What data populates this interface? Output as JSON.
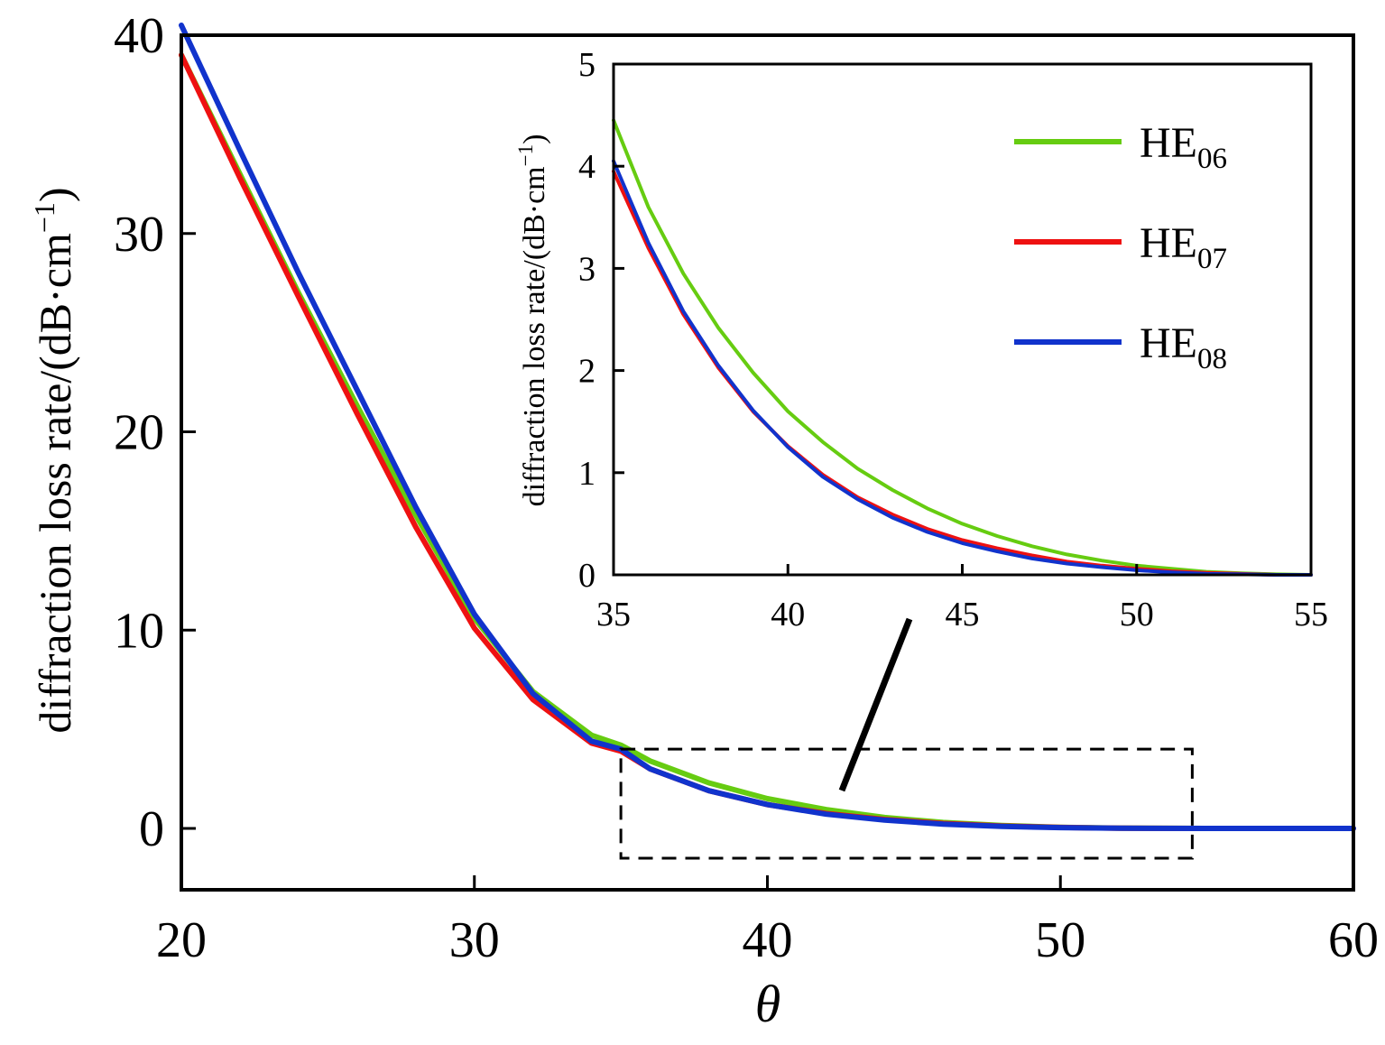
{
  "chart_data": [
    {
      "type": "line",
      "xlabel": "θ",
      "ylabel": "diffraction loss rate/(dB·cm",
      "ylabel_sup": "−1",
      "ylabel_close": ")",
      "xlim": [
        20,
        60
      ],
      "ylim": [
        -3,
        40
      ],
      "xticks": [
        "20",
        "30",
        "40",
        "50",
        "60"
      ],
      "yticks": [
        "0",
        "10",
        "20",
        "30",
        "40"
      ],
      "grid": false,
      "series": [
        {
          "name": "HE06",
          "color": "#66cc11",
          "x": [
            20,
            22,
            24,
            26,
            28,
            30,
            32,
            34,
            35,
            36,
            38,
            40,
            42,
            44,
            46,
            48,
            50,
            52,
            55,
            60
          ],
          "y": [
            39.0,
            33.0,
            27.0,
            21.3,
            15.8,
            10.6,
            6.9,
            4.7,
            4.2,
            3.4,
            2.3,
            1.5,
            0.95,
            0.55,
            0.3,
            0.15,
            0.06,
            0.02,
            0.0,
            0.0
          ]
        },
        {
          "name": "HE07",
          "color": "#ee1111",
          "x": [
            20,
            22,
            24,
            26,
            28,
            30,
            32,
            34,
            35,
            36,
            38,
            40,
            42,
            44,
            46,
            48,
            50,
            52,
            55,
            60
          ],
          "y": [
            39.0,
            32.8,
            26.8,
            20.9,
            15.2,
            10.1,
            6.5,
            4.3,
            3.9,
            3.0,
            1.9,
            1.2,
            0.75,
            0.45,
            0.25,
            0.12,
            0.05,
            0.01,
            0.0,
            0.0
          ]
        },
        {
          "name": "HE08",
          "color": "#1133cc",
          "x": [
            20,
            22,
            24,
            26,
            28,
            30,
            32,
            34,
            35,
            36,
            38,
            40,
            42,
            44,
            46,
            48,
            50,
            52,
            55,
            60
          ],
          "y": [
            40.5,
            34.2,
            28.0,
            22.1,
            16.2,
            10.8,
            6.8,
            4.4,
            4.0,
            3.0,
            1.9,
            1.2,
            0.72,
            0.42,
            0.22,
            0.1,
            0.04,
            0.01,
            0.0,
            0.0
          ]
        }
      ],
      "zoom_box": {
        "x": [
          35,
          54.5
        ],
        "y": [
          -1.5,
          4
        ]
      }
    },
    {
      "type": "line",
      "xlabel": "",
      "ylabel": "diffraction loss rate/(dB·cm",
      "ylabel_sup": "−1",
      "ylabel_close": ")",
      "xlim": [
        35,
        55
      ],
      "ylim": [
        0,
        5
      ],
      "xticks": [
        "35",
        "40",
        "45",
        "50",
        "55"
      ],
      "yticks": [
        "0",
        "1",
        "2",
        "3",
        "4",
        "5"
      ],
      "grid": false,
      "legend_position": "top-right",
      "legend": [
        {
          "base": "HE",
          "sub": "06",
          "color": "#66cc11"
        },
        {
          "base": "HE",
          "sub": "07",
          "color": "#ee1111"
        },
        {
          "base": "HE",
          "sub": "08",
          "color": "#1133cc"
        }
      ],
      "series": [
        {
          "name": "HE06",
          "color": "#66cc11",
          "x": [
            35,
            36,
            37,
            38,
            39,
            40,
            41,
            42,
            43,
            44,
            45,
            46,
            47,
            48,
            49,
            50,
            51,
            52,
            53,
            54,
            55
          ],
          "y": [
            4.45,
            3.6,
            2.95,
            2.42,
            1.98,
            1.6,
            1.3,
            1.04,
            0.83,
            0.65,
            0.5,
            0.38,
            0.28,
            0.2,
            0.14,
            0.09,
            0.06,
            0.03,
            0.015,
            0.005,
            0.0
          ]
        },
        {
          "name": "HE07",
          "color": "#ee1111",
          "x": [
            35,
            36,
            37,
            38,
            39,
            40,
            41,
            42,
            43,
            44,
            45,
            46,
            47,
            48,
            49,
            50,
            51,
            52,
            53,
            54,
            55
          ],
          "y": [
            3.95,
            3.2,
            2.55,
            2.03,
            1.6,
            1.26,
            0.98,
            0.76,
            0.59,
            0.45,
            0.34,
            0.26,
            0.19,
            0.13,
            0.09,
            0.06,
            0.035,
            0.02,
            0.01,
            0.0,
            0.0
          ]
        },
        {
          "name": "HE08",
          "color": "#1133cc",
          "x": [
            35,
            36,
            37,
            38,
            39,
            40,
            41,
            42,
            43,
            44,
            45,
            46,
            47,
            48,
            49,
            50,
            51,
            52,
            53,
            54,
            55
          ],
          "y": [
            4.05,
            3.25,
            2.58,
            2.05,
            1.61,
            1.25,
            0.96,
            0.74,
            0.56,
            0.42,
            0.31,
            0.23,
            0.16,
            0.11,
            0.075,
            0.045,
            0.025,
            0.01,
            0.005,
            0.0,
            0.0
          ]
        }
      ]
    }
  ]
}
